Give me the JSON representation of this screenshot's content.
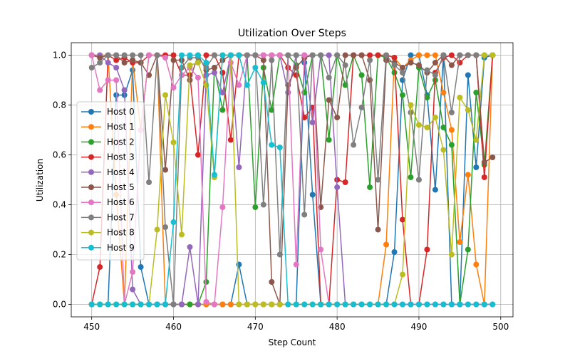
{
  "chart_data": {
    "type": "line",
    "title": "Utilization Over Steps",
    "xlabel": "Step Count",
    "ylabel": "Utilization",
    "xlim": [
      447.5,
      501.5
    ],
    "ylim": [
      -0.05,
      1.05
    ],
    "xticks": [
      450,
      460,
      470,
      480,
      490,
      500
    ],
    "yticks": [
      0.0,
      0.2,
      0.4,
      0.6,
      0.8,
      1.0
    ],
    "grid": true,
    "legend_position": "center-left",
    "x": [
      450,
      451,
      452,
      453,
      454,
      455,
      456,
      457,
      458,
      459,
      460,
      461,
      462,
      463,
      464,
      465,
      466,
      467,
      468,
      469,
      470,
      471,
      472,
      473,
      474,
      475,
      476,
      477,
      478,
      479,
      480,
      481,
      482,
      483,
      484,
      485,
      486,
      487,
      488,
      489,
      490,
      491,
      492,
      493,
      494,
      495,
      496,
      497,
      498,
      499
    ],
    "series": [
      {
        "name": "Host 0",
        "color": "#1f77b4",
        "values": [
          0,
          0,
          0,
          0.84,
          0.84,
          0.94,
          0.15,
          0,
          0,
          0,
          0,
          0,
          0,
          0,
          0,
          0,
          0,
          0,
          0.16,
          0,
          0,
          0,
          0,
          0,
          0,
          0,
          0.97,
          0.44,
          0,
          0,
          0,
          0,
          0,
          0,
          0,
          0,
          0,
          0.21,
          0.9,
          1.0,
          1.0,
          0.84,
          0.46,
          1.0,
          0,
          0,
          0.92,
          0.55,
          0.99,
          1.0
        ]
      },
      {
        "name": "Host 1",
        "color": "#ff7f0e",
        "values": [
          1.0,
          1.0,
          1.0,
          0.44,
          0,
          0.98,
          0.7,
          1.0,
          1.0,
          0,
          0,
          0,
          0,
          0,
          0,
          0,
          0,
          0,
          0,
          0,
          0,
          0,
          0,
          0,
          0,
          0,
          0,
          0,
          0,
          0,
          0,
          0,
          0,
          0,
          0,
          0,
          0.24,
          0.99,
          0.95,
          0.98,
          1.0,
          1.0,
          1.0,
          0.85,
          0.7,
          0.25,
          0.52,
          0.16,
          0,
          1.0
        ]
      },
      {
        "name": "Host 2",
        "color": "#2ca02c",
        "values": [
          0,
          0,
          0,
          0,
          0,
          0,
          0,
          0,
          0,
          0,
          0,
          0,
          0,
          0,
          0.09,
          0.95,
          0.78,
          1.0,
          1.0,
          1.0,
          0.39,
          0.95,
          0.78,
          1.0,
          1.0,
          0.96,
          0.85,
          1.0,
          1.0,
          0.66,
          1.0,
          0.88,
          1.0,
          0.92,
          0.47,
          1.0,
          0.99,
          0.93,
          0.84,
          0.51,
          0.95,
          0.83,
          0.9,
          0.71,
          0.64,
          0,
          0.22,
          0.85,
          0.56,
          1.0
        ]
      },
      {
        "name": "Host 3",
        "color": "#d62728",
        "values": [
          0,
          0.15,
          1.0,
          0.98,
          0.99,
          0.97,
          0.97,
          1.0,
          1.0,
          1.0,
          1.0,
          0.92,
          0.92,
          0.6,
          1.0,
          1.0,
          0.93,
          0.66,
          1.0,
          1.0,
          1.0,
          1.0,
          1.0,
          1.0,
          0.95,
          0.92,
          0.75,
          0.79,
          0,
          0,
          0.5,
          0.49,
          1.0,
          1.0,
          1.0,
          1.0,
          1.0,
          0.99,
          0.34,
          0,
          0,
          0.22,
          0.93,
          0.99,
          1.0,
          0.97,
          1.0,
          1.0,
          0.51,
          1.0
        ]
      },
      {
        "name": "Host 4",
        "color": "#9467bd",
        "values": [
          1.0,
          1.0,
          0.97,
          0.95,
          0.86,
          0.06,
          0,
          0,
          0,
          0,
          0,
          0,
          0.23,
          0,
          0.92,
          0.93,
          0.85,
          1.0,
          0.55,
          1.0,
          1.0,
          1.0,
          1.0,
          1.0,
          0.85,
          1.0,
          1.0,
          0.73,
          1.0,
          1.0,
          0.47,
          0,
          0,
          0,
          0,
          0,
          0,
          0,
          0,
          0,
          0,
          0,
          0,
          0,
          0,
          0,
          0,
          0,
          0,
          0
        ]
      },
      {
        "name": "Host 5",
        "color": "#8c564b",
        "values": [
          1.0,
          0.99,
          1.0,
          1.0,
          0.97,
          0.98,
          0.97,
          0.92,
          1.0,
          0.54,
          0.98,
          0.98,
          0.9,
          1.0,
          0.94,
          0.95,
          0.98,
          1.0,
          1.0,
          1.0,
          1.0,
          0.98,
          0.09,
          0,
          0.88,
          0.95,
          0.99,
          1.0,
          0.39,
          0.82,
          0.75,
          1.0,
          1.0,
          1.0,
          0.9,
          0.3,
          0.98,
          0.97,
          0.95,
          0.97,
          0.96,
          0.93,
          0.97,
          1.0,
          0.96,
          1.0,
          1.0,
          1.0,
          0.57,
          0.59
        ]
      },
      {
        "name": "Host 6",
        "color": "#e377c2",
        "values": [
          1.0,
          0.86,
          0.9,
          0.9,
          0,
          0.13,
          0.7,
          1.0,
          1.0,
          0.99,
          0.87,
          0.92,
          0.95,
          0.91,
          0.01,
          0,
          0.39,
          0.97,
          0.88,
          1.0,
          1.0,
          1.0,
          1.0,
          1.0,
          1.0,
          0.16,
          1.0,
          1.0,
          0.22,
          0,
          0,
          0,
          0,
          0,
          0,
          0,
          0,
          0,
          0,
          0,
          0,
          0,
          0,
          0,
          0,
          0,
          0,
          0,
          0,
          0
        ]
      },
      {
        "name": "Host 7",
        "color": "#7f7f7f",
        "values": [
          0.95,
          0.97,
          1.0,
          1.0,
          1.0,
          1.0,
          1.0,
          0.49,
          1.0,
          0.31,
          0,
          0.95,
          0.99,
          0.99,
          0.95,
          1.0,
          1.0,
          1.0,
          1.0,
          1.0,
          1.0,
          0.4,
          0.98,
          0.2,
          1.0,
          1.0,
          0.36,
          1.0,
          1.0,
          0.91,
          1.0,
          0.96,
          0.64,
          0.79,
          0.98,
          0.5,
          1.0,
          0.96,
          0.93,
          0.77,
          0.5,
          0.94,
          0.92,
          1.0,
          0.77,
          1.0,
          1.0,
          1.0,
          1.0,
          1.0
        ]
      },
      {
        "name": "Host 8",
        "color": "#bcbd22",
        "values": [
          0,
          0,
          0,
          0,
          0,
          0,
          0,
          0,
          0.3,
          0.84,
          0.65,
          0.28,
          0.96,
          0.97,
          0.88,
          0.51,
          1.0,
          1.0,
          0,
          0,
          0,
          0,
          0,
          0,
          0,
          0,
          0,
          0,
          0,
          0,
          0,
          0,
          0,
          0,
          0,
          0,
          0,
          0,
          0.12,
          0.8,
          0.72,
          0.71,
          0.75,
          0.62,
          0.2,
          0.83,
          0.78,
          0.66,
          1.0,
          1.0
        ]
      },
      {
        "name": "Host 9",
        "color": "#17becf",
        "values": [
          0,
          0,
          0,
          0,
          0,
          0,
          0,
          0,
          0,
          0,
          0.33,
          1.0,
          1.0,
          1.0,
          0.97,
          0.52,
          1.0,
          1.0,
          1.0,
          0.88,
          0.95,
          0.89,
          0.64,
          0.63,
          0,
          0,
          0,
          0,
          0,
          0,
          0,
          0,
          0,
          0,
          0,
          0,
          0,
          0,
          0,
          0,
          0,
          0,
          0,
          0,
          0,
          0,
          0,
          0,
          0,
          0
        ]
      }
    ]
  }
}
